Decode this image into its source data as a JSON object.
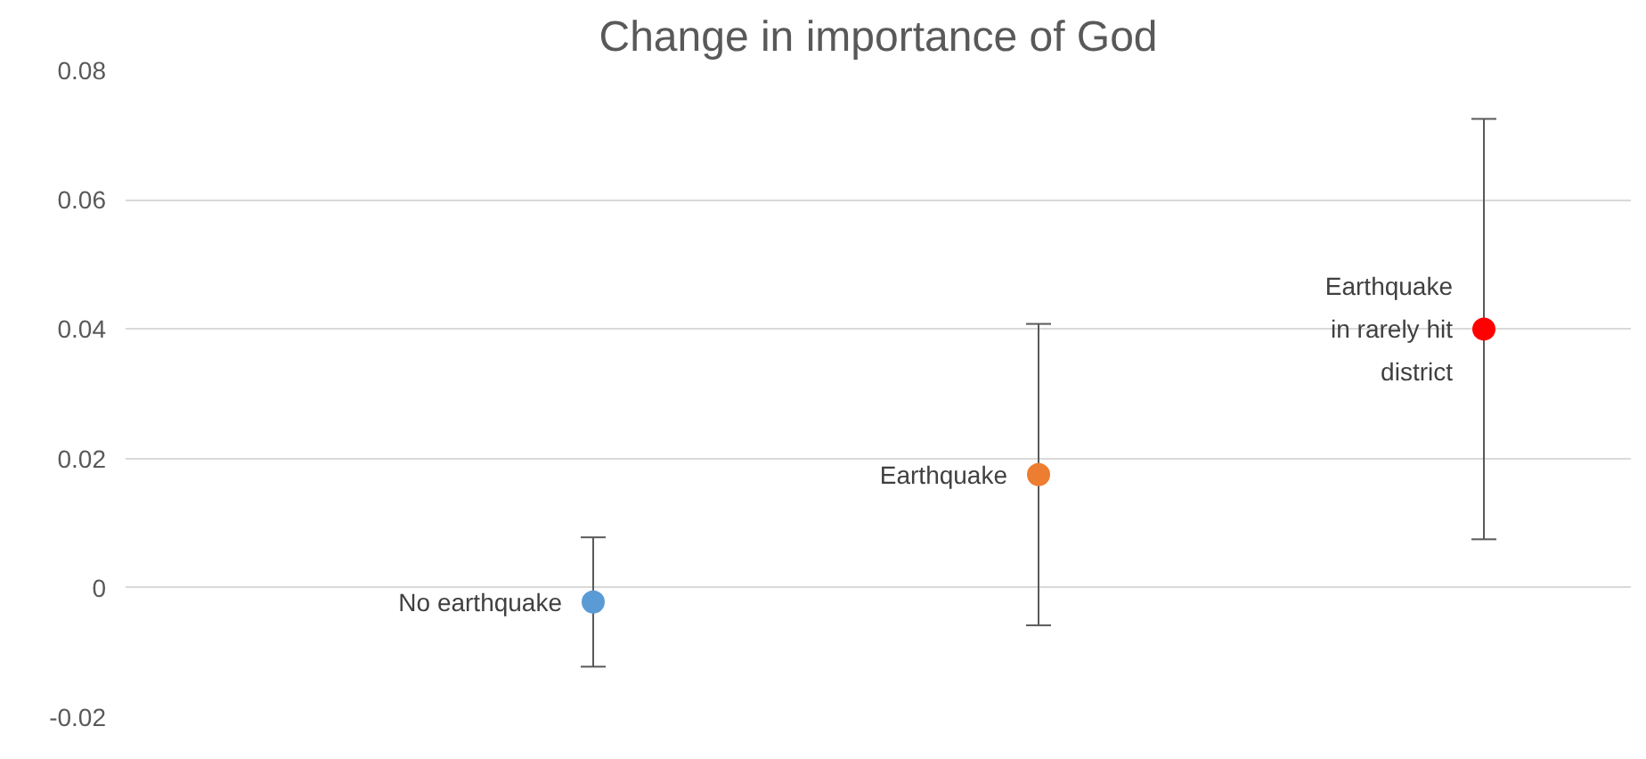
{
  "chart_data": {
    "type": "scatter",
    "title": "Change in importance of God",
    "categories": [
      null,
      null,
      null
    ],
    "series": [
      {
        "values": [
          -0.0022,
          0.0175,
          0.04
        ],
        "colors": [
          "#5b9bd5",
          "#ed7d31",
          "#ff0000"
        ],
        "errors": [
          0.01,
          0.0233,
          0.0325
        ],
        "value_labels": [
          "No earthquake",
          "Earthquake",
          "Earthquake\nin rarely hit\ndistrict"
        ]
      }
    ],
    "ylim": [
      -0.02,
      0.08
    ],
    "yticks": [
      -0.02,
      0,
      0.02,
      0.04,
      0.06,
      0.08
    ],
    "grid": "y",
    "marker": "circle",
    "tick_labels": "y"
  }
}
